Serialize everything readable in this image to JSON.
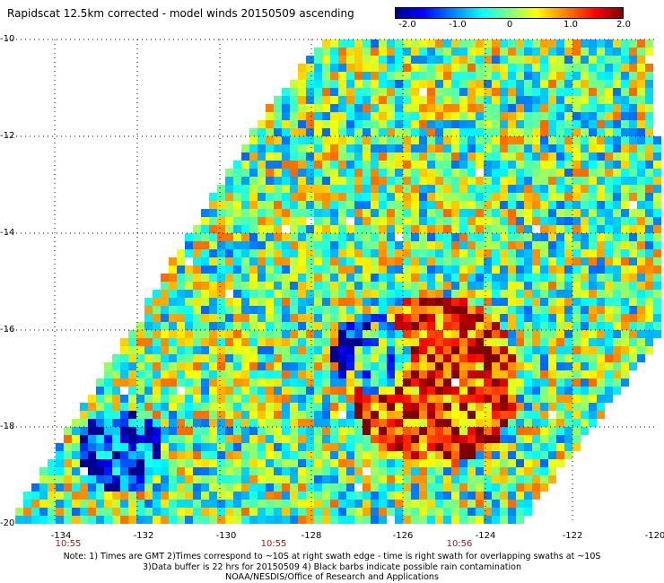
{
  "title": "Rapidscat 12.5km corrected - model winds 20150509 ascending",
  "colorbar": {
    "ticks": [
      "-2.0",
      "-1.0",
      "0",
      "1.0",
      "2.0"
    ],
    "range": [
      -2.0,
      2.0
    ],
    "colormap": [
      "#00008f",
      "#0000ff",
      "#007fff",
      "#00ffff",
      "#7fff7f",
      "#ffff00",
      "#ff7f00",
      "#ff0000",
      "#800000"
    ]
  },
  "map": {
    "lon_range": [
      -135,
      -120
    ],
    "lat_range": [
      -20,
      -10
    ],
    "lat_labels": [
      "-10",
      "-12",
      "-14",
      "-16",
      "-18",
      "-20"
    ],
    "lon_labels": [
      "-134",
      "-132",
      "-130",
      "-128",
      "-126",
      "-124",
      "-122",
      "-120"
    ],
    "swath_times": [
      "10:55",
      "10:55",
      "10:56"
    ],
    "grid": "dotted"
  },
  "notes": [
    "Note: 1) Times are GMT 2)Times correspond to ~10S at right swath edge - time is right swath for overlapping swaths at ~10S",
    "3)Data buffer is 22 hrs for 20150509 4) Black barbs indicate possible rain contamination",
    "NOAA/NESDIS/Office of Research and Applications"
  ]
}
